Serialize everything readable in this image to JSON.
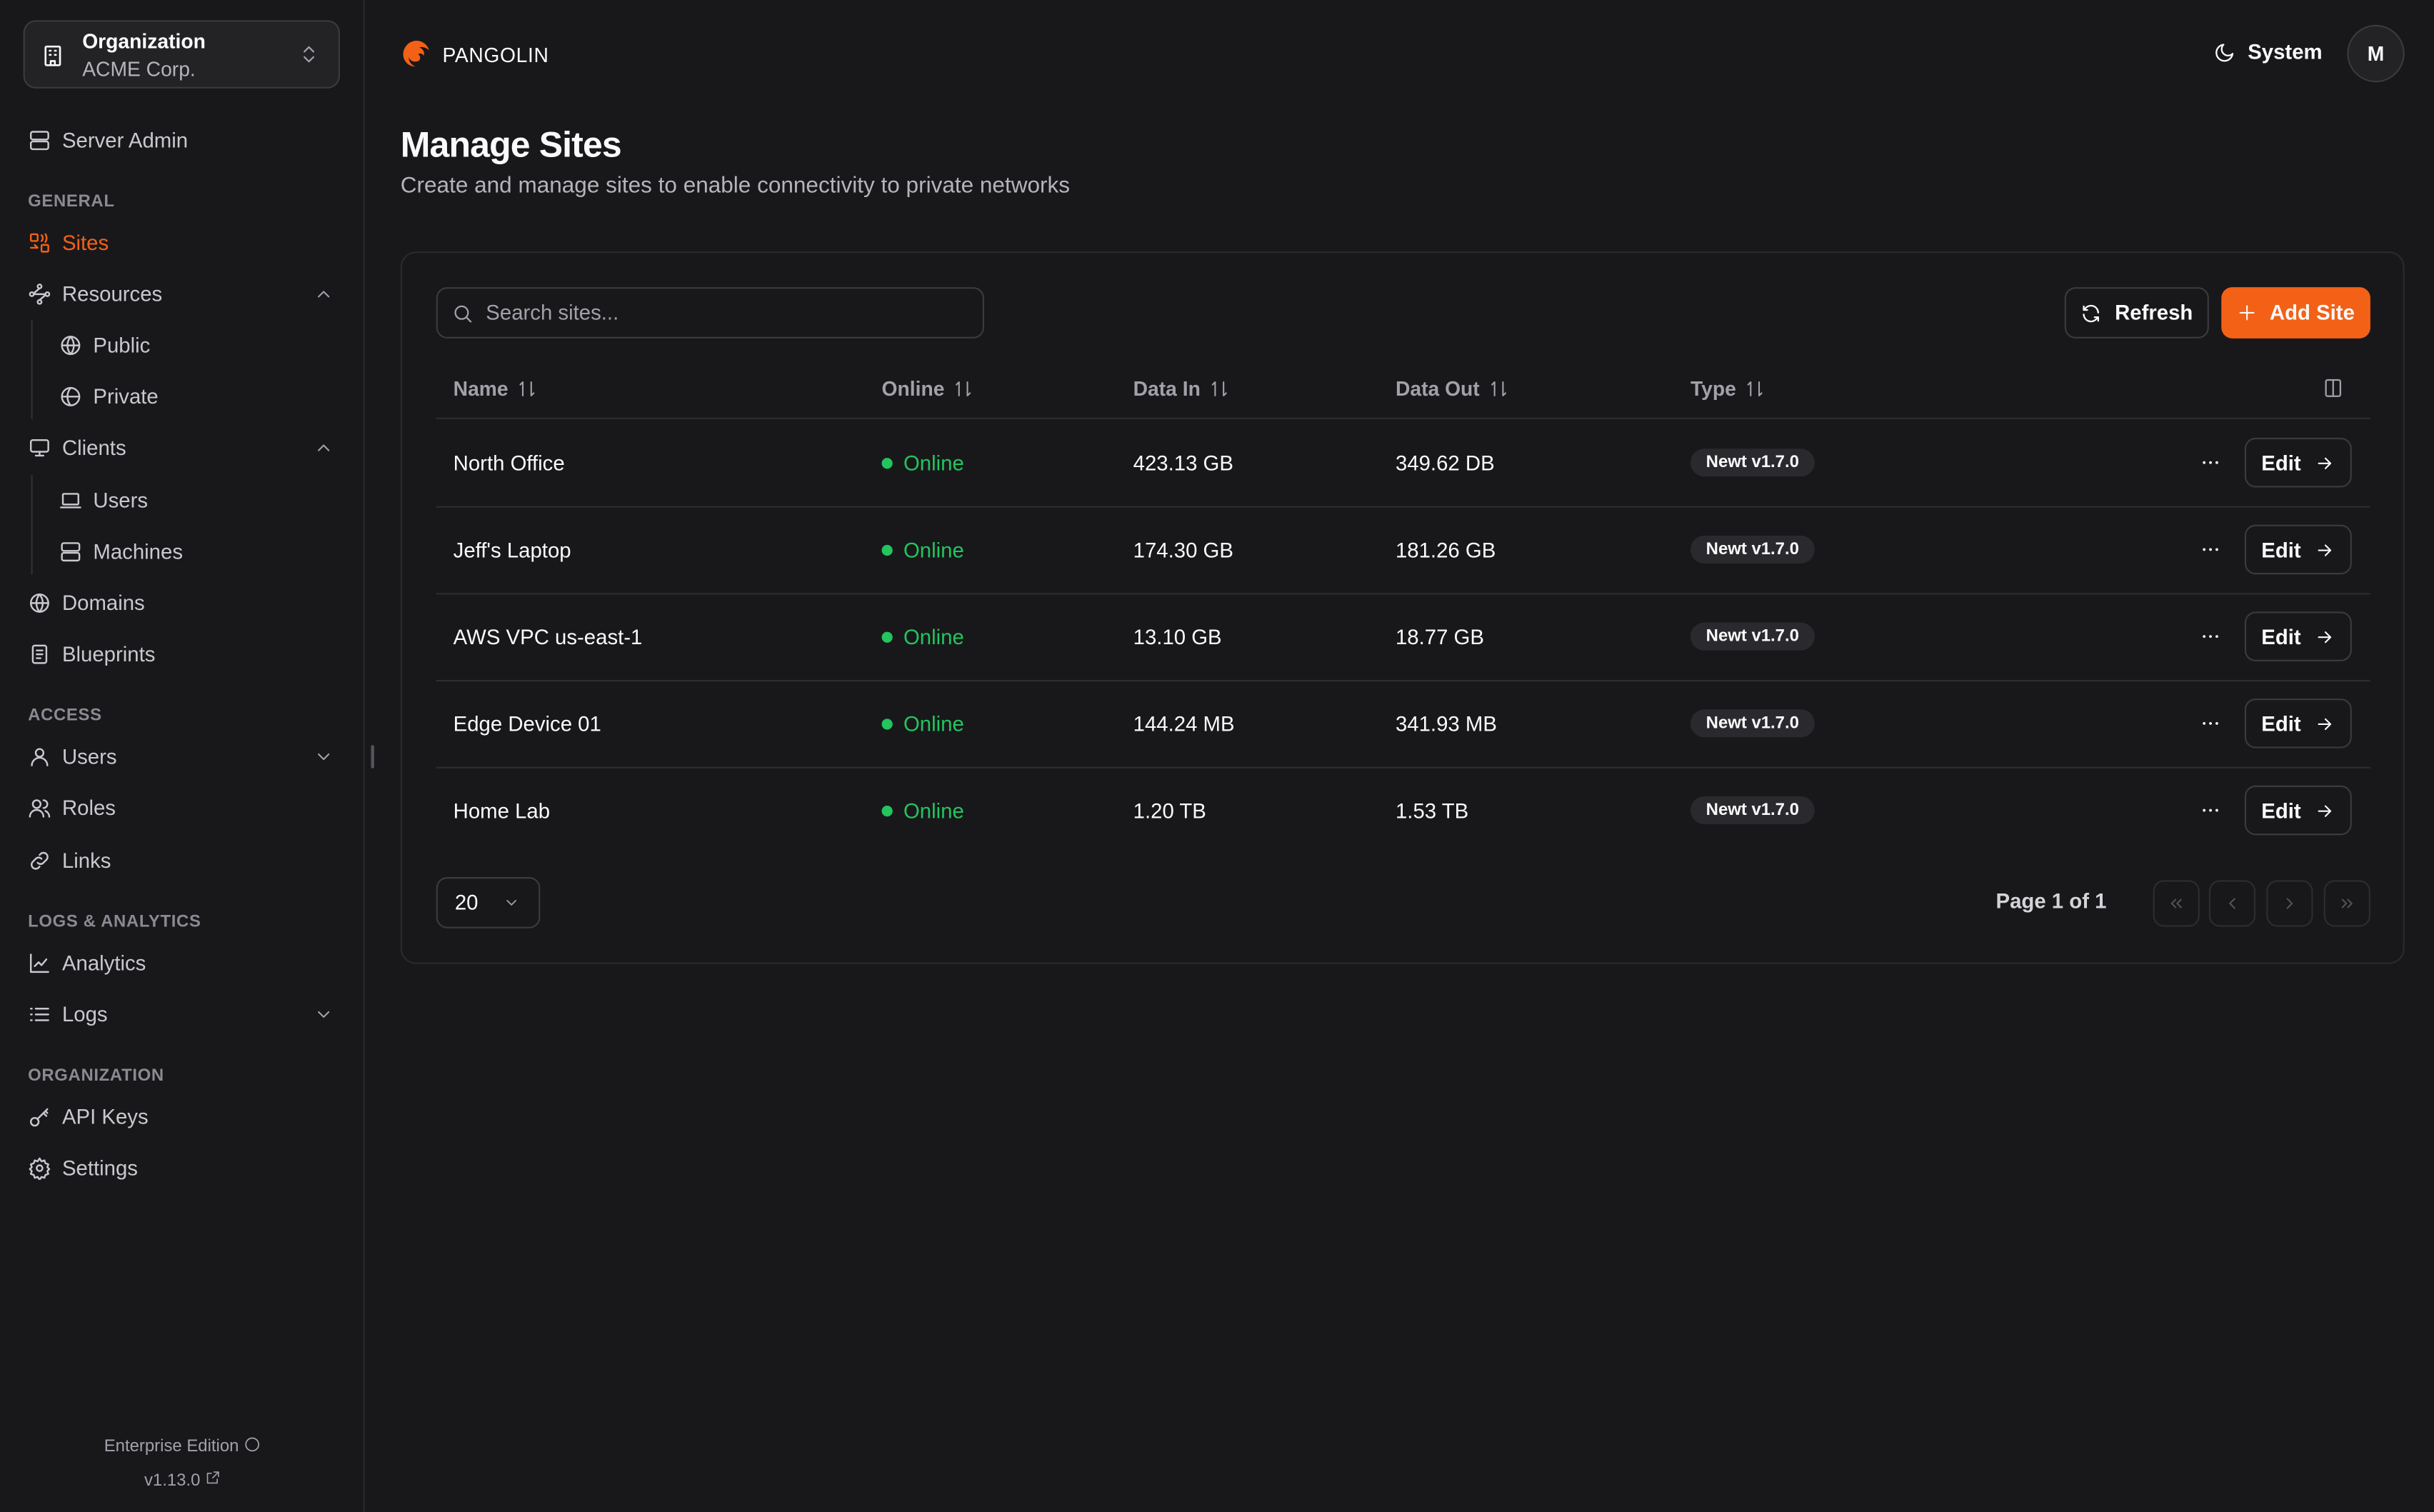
{
  "org": {
    "label": "Organization",
    "name": "ACME Corp."
  },
  "sidebar": {
    "server_admin": "Server Admin",
    "sections": {
      "general": "GENERAL",
      "access": "ACCESS",
      "logs": "LOGS & ANALYTICS",
      "organization": "ORGANIZATION"
    },
    "items": {
      "sites": "Sites",
      "resources": "Resources",
      "public": "Public",
      "private": "Private",
      "clients": "Clients",
      "users_client": "Users",
      "machines": "Machines",
      "domains": "Domains",
      "blueprints": "Blueprints",
      "users": "Users",
      "roles": "Roles",
      "links": "Links",
      "analytics": "Analytics",
      "logs": "Logs",
      "api_keys": "API Keys",
      "settings": "Settings"
    },
    "active": "Sites",
    "footer": {
      "edition": "Enterprise Edition",
      "version": "v1.13.0"
    }
  },
  "header": {
    "brand": "PANGOLIN",
    "theme": "System",
    "avatar": "M"
  },
  "page": {
    "title": "Manage Sites",
    "subtitle": "Create and manage sites to enable connectivity to private networks"
  },
  "sites": {
    "search_placeholder": "Search sites...",
    "refresh": "Refresh",
    "add": "Add Site",
    "columns": {
      "name": "Name",
      "online": "Online",
      "data_in": "Data In",
      "data_out": "Data Out",
      "type": "Type"
    },
    "edit_label": "Edit",
    "rows": [
      {
        "name": "North Office",
        "status": "Online",
        "data_in": "423.13 GB",
        "data_out": "349.62 DB",
        "type": "Newt v1.7.0"
      },
      {
        "name": "Jeff's Laptop",
        "status": "Online",
        "data_in": "174.30 GB",
        "data_out": "181.26 GB",
        "type": "Newt v1.7.0"
      },
      {
        "name": "AWS VPC us-east-1",
        "status": "Online",
        "data_in": "13.10 GB",
        "data_out": "18.77 GB",
        "type": "Newt v1.7.0"
      },
      {
        "name": "Edge Device 01",
        "status": "Online",
        "data_in": "144.24 MB",
        "data_out": "341.93 MB",
        "type": "Newt v1.7.0"
      },
      {
        "name": "Home Lab",
        "status": "Online",
        "data_in": "1.20 TB",
        "data_out": "1.53 TB",
        "type": "Newt v1.7.0"
      }
    ],
    "page_size": "20",
    "page_info": "Page 1 of 1"
  },
  "colors": {
    "accent": "#f36117",
    "online": "#22c55e",
    "background": "#18181b"
  }
}
